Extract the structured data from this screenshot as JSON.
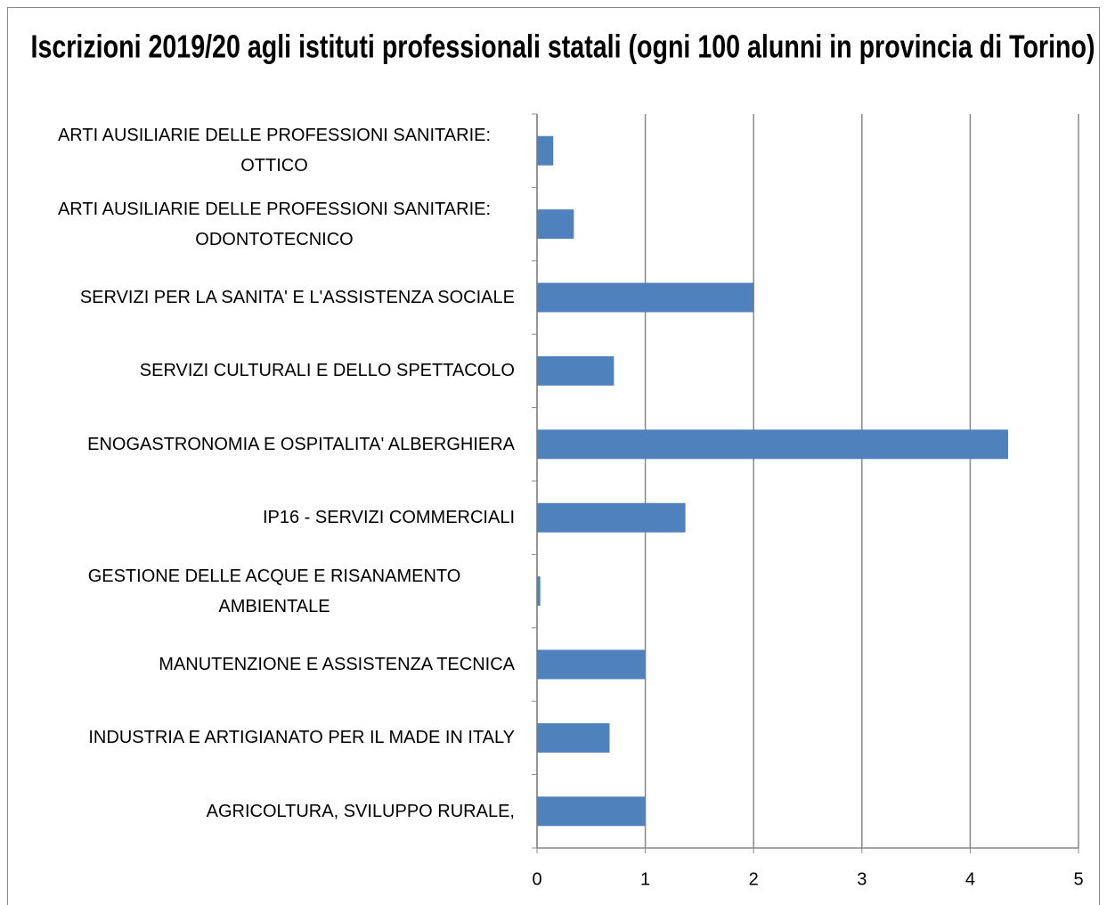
{
  "chart_data": {
    "type": "bar",
    "orientation": "horizontal",
    "title": "Iscrizioni 2019/20 agli istituti professionali statali (ogni 100 alunni in provincia di Torino)",
    "categories": [
      "ARTI AUSILIARIE DELLE PROFESSIONI SANITARIE: OTTICO",
      "ARTI AUSILIARIE DELLE PROFESSIONI SANITARIE: ODONTOTECNICO",
      "SERVIZI PER LA SANITA' E L'ASSISTENZA SOCIALE",
      "SERVIZI CULTURALI E DELLO SPETTACOLO",
      "ENOGASTRONOMIA E OSPITALITA' ALBERGHIERA",
      "IP16 - SERVIZI COMMERCIALI",
      "GESTIONE DELLE ACQUE E RISANAMENTO AMBIENTALE",
      "MANUTENZIONE E ASSISTENZA TECNICA",
      "INDUSTRIA E ARTIGIANATO PER IL MADE IN ITALY",
      "AGRICOLTURA, SVILUPPO RURALE,"
    ],
    "values": [
      0.15,
      0.34,
      2.0,
      0.71,
      4.35,
      1.37,
      0.03,
      1.0,
      0.67,
      1.0
    ],
    "color": "#4f81bd",
    "xlim": [
      0,
      5
    ],
    "xticks": [
      0,
      1,
      2,
      3,
      4,
      5
    ],
    "grid": true
  }
}
